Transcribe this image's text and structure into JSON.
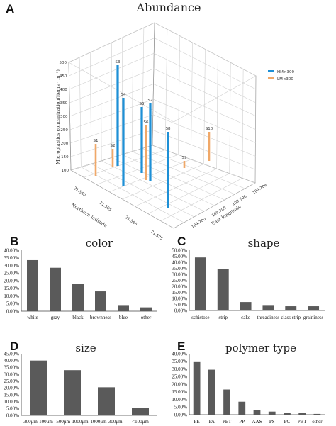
{
  "chart_data": [
    {
      "panel": "A",
      "type": "bar3d",
      "title": "Abundance",
      "zlabel": "Microplastics concentration(items · m⁻³)",
      "xlabel": "Northern latitude",
      "ylabel": "East longitude",
      "zlim": [
        100,
        500
      ],
      "zticks": [
        "100",
        "150",
        "200",
        "250",
        "300",
        "350",
        "400",
        "450",
        "500"
      ],
      "xticks": [
        "21.560",
        "21.565",
        "21.566",
        "21.575"
      ],
      "yticks": [
        "109.700",
        "109.705",
        "109.706",
        "109.708"
      ],
      "legend": [
        {
          "label": "HM>300",
          "color": "#1e90d6"
        },
        {
          "label": "LM<300",
          "color": "#f0a868"
        }
      ],
      "stations": [
        {
          "name": "S1",
          "group": "LM<300"
        },
        {
          "name": "S2",
          "group": "LM<300"
        },
        {
          "name": "S3",
          "group": "HM>300"
        },
        {
          "name": "S4",
          "group": "HM>300"
        },
        {
          "name": "S5",
          "group": "HM>300"
        },
        {
          "name": "S6",
          "group": "LM<300"
        },
        {
          "name": "S7",
          "group": "HM>300"
        },
        {
          "name": "S8",
          "group": "HM>300"
        },
        {
          "name": "S9",
          "group": "LM<300"
        },
        {
          "name": "S10",
          "group": "LM<300"
        }
      ]
    },
    {
      "panel": "B",
      "type": "bar",
      "title": "color",
      "categories": [
        "white",
        "gray",
        "black",
        "brownness",
        "blue",
        "other"
      ],
      "values": [
        33.5,
        28.5,
        18.0,
        13.0,
        4.0,
        2.5
      ],
      "yticks": [
        "0.00%",
        "5.00%",
        "10.00%",
        "15.00%",
        "20.00%",
        "25.00%",
        "30.00%",
        "35.00%",
        "40.00%"
      ],
      "ylim": [
        0,
        40
      ]
    },
    {
      "panel": "C",
      "type": "bar",
      "title": "shape",
      "categories": [
        "schistose",
        "strip",
        "cake",
        "threadiness",
        "class strip",
        "graininess"
      ],
      "values": [
        44.0,
        34.5,
        7.0,
        4.5,
        3.5,
        3.5
      ],
      "yticks": [
        "0.00%",
        "5.00%",
        "10.00%",
        "15.00%",
        "20.00%",
        "25.00%",
        "30.00%",
        "35.00%",
        "40.00%",
        "45.00%",
        "50.00%"
      ],
      "ylim": [
        0,
        50
      ]
    },
    {
      "panel": "D",
      "type": "bar",
      "title": "size",
      "categories": [
        "300μm-100μm",
        "500μm-1000μm",
        "1000μm-300μm",
        "<100μm"
      ],
      "values": [
        40.0,
        33.0,
        20.5,
        5.5
      ],
      "yticks": [
        "0.00%",
        "5.00%",
        "10.00%",
        "15.00%",
        "20.00%",
        "25.00%",
        "30.00%",
        "35.00%",
        "40.00%",
        "45.00%"
      ],
      "ylim": [
        0,
        45
      ]
    },
    {
      "panel": "E",
      "type": "bar",
      "title": "polymer type",
      "categories": [
        "PE",
        "PA",
        "PET",
        "PP",
        "AAS",
        "PS",
        "PC",
        "PBT",
        "other"
      ],
      "values": [
        34.5,
        29.5,
        16.5,
        8.5,
        3.0,
        2.0,
        1.0,
        1.0,
        0.5
      ],
      "yticks": [
        "0.00%",
        "5.00%",
        "10.00%",
        "15.00%",
        "20.00%",
        "25.00%",
        "30.00%",
        "35.00%",
        "40.00%"
      ],
      "ylim": [
        0,
        40
      ]
    }
  ],
  "bar_color": "#5a5a5a"
}
